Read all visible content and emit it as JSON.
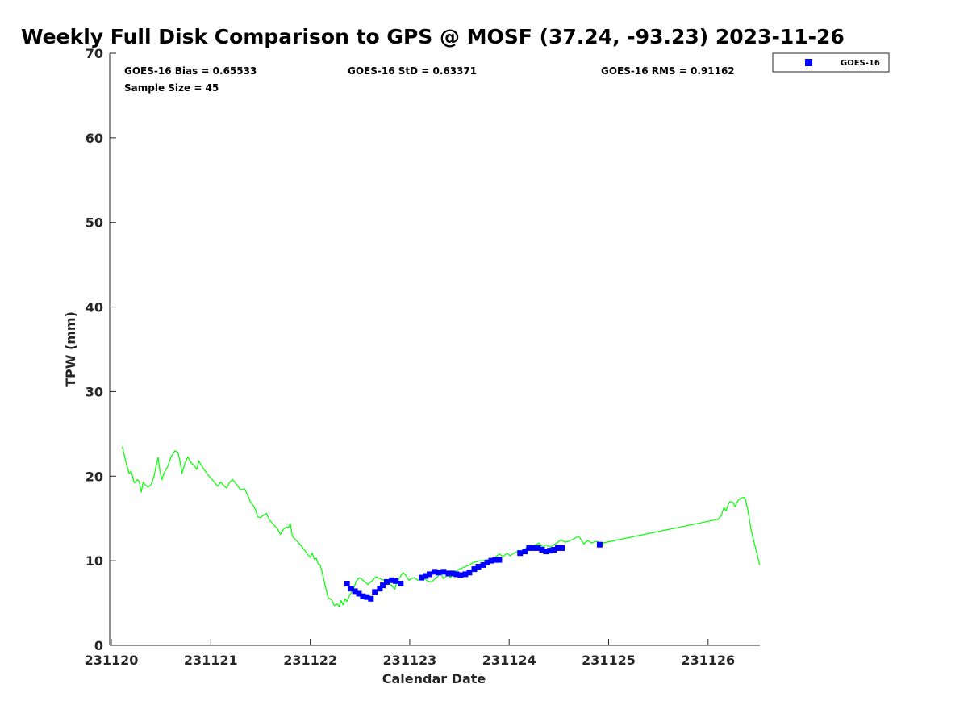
{
  "chart_data": {
    "type": "line",
    "title": "Weekly Full Disk Comparison to GPS @ MOSF (37.24, -93.23) 2023-11-26",
    "xlabel": "Calendar Date",
    "ylabel": "TPW (mm)",
    "xlim": [
      231120,
      231126.52
    ],
    "ylim": [
      0,
      70
    ],
    "x_ticks": [
      231120,
      231121,
      231122,
      231123,
      231124,
      231125,
      231126
    ],
    "x_tick_labels": [
      "231120",
      "231121",
      "231122",
      "231123",
      "231124",
      "231125",
      "231126"
    ],
    "y_ticks": [
      0,
      10,
      20,
      30,
      40,
      50,
      60,
      70
    ],
    "y_tick_labels": [
      "0",
      "10",
      "20",
      "30",
      "40",
      "50",
      "60",
      "70"
    ],
    "grid": false,
    "legend": {
      "position": "top-right",
      "entries": [
        "GOES-16"
      ]
    },
    "stats": {
      "bias": "GOES-16 Bias = 0.65533",
      "std": "GOES-16 StD = 0.63371",
      "rms": "GOES-16 RMS = 0.91162",
      "sample_size": "Sample Size = 45"
    },
    "series": [
      {
        "role": "gps",
        "kind": "line",
        "color": "#00ff00",
        "points": [
          [
            231120.11,
            23.5
          ],
          [
            231120.15,
            21.5
          ],
          [
            231120.18,
            20.3
          ],
          [
            231120.2,
            20.6
          ],
          [
            231120.23,
            19.2
          ],
          [
            231120.26,
            19.6
          ],
          [
            231120.28,
            19.4
          ],
          [
            231120.3,
            18.1
          ],
          [
            231120.32,
            19.3
          ],
          [
            231120.34,
            19.0
          ],
          [
            231120.37,
            18.7
          ],
          [
            231120.4,
            19.0
          ],
          [
            231120.43,
            20.0
          ],
          [
            231120.45,
            21.2
          ],
          [
            231120.47,
            22.2
          ],
          [
            231120.49,
            20.5
          ],
          [
            231120.51,
            19.6
          ],
          [
            231120.53,
            20.4
          ],
          [
            231120.57,
            21.2
          ],
          [
            231120.6,
            22.3
          ],
          [
            231120.64,
            23.0
          ],
          [
            231120.67,
            22.8
          ],
          [
            231120.69,
            21.8
          ],
          [
            231120.71,
            20.3
          ],
          [
            231120.74,
            21.5
          ],
          [
            231120.77,
            22.3
          ],
          [
            231120.8,
            21.6
          ],
          [
            231120.83,
            21.3
          ],
          [
            231120.86,
            20.8
          ],
          [
            231120.88,
            21.8
          ],
          [
            231120.92,
            21.0
          ],
          [
            231120.97,
            20.2
          ],
          [
            231121.02,
            19.5
          ],
          [
            231121.07,
            18.8
          ],
          [
            231121.1,
            19.3
          ],
          [
            231121.13,
            18.9
          ],
          [
            231121.16,
            18.6
          ],
          [
            231121.19,
            19.3
          ],
          [
            231121.22,
            19.6
          ],
          [
            231121.26,
            19.0
          ],
          [
            231121.3,
            18.4
          ],
          [
            231121.34,
            18.5
          ],
          [
            231121.37,
            17.8
          ],
          [
            231121.4,
            16.9
          ],
          [
            231121.43,
            16.5
          ],
          [
            231121.45,
            16.0
          ],
          [
            231121.47,
            15.2
          ],
          [
            231121.5,
            15.1
          ],
          [
            231121.53,
            15.4
          ],
          [
            231121.56,
            15.6
          ],
          [
            231121.59,
            14.8
          ],
          [
            231121.63,
            14.3
          ],
          [
            231121.67,
            13.8
          ],
          [
            231121.7,
            13.1
          ],
          [
            231121.73,
            13.7
          ],
          [
            231121.76,
            14.0
          ],
          [
            231121.78,
            13.9
          ],
          [
            231121.8,
            14.4
          ],
          [
            231121.82,
            12.9
          ],
          [
            231121.86,
            12.4
          ],
          [
            231121.9,
            11.9
          ],
          [
            231121.94,
            11.3
          ],
          [
            231121.97,
            10.8
          ],
          [
            231122.0,
            10.4
          ],
          [
            231122.02,
            10.9
          ],
          [
            231122.04,
            10.2
          ],
          [
            231122.06,
            10.3
          ],
          [
            231122.08,
            9.6
          ],
          [
            231122.1,
            9.5
          ],
          [
            231122.12,
            8.6
          ],
          [
            231122.14,
            7.6
          ],
          [
            231122.16,
            6.6
          ],
          [
            231122.18,
            5.6
          ],
          [
            231122.2,
            5.5
          ],
          [
            231122.22,
            5.3
          ],
          [
            231122.24,
            4.7
          ],
          [
            231122.27,
            4.9
          ],
          [
            231122.29,
            4.6
          ],
          [
            231122.31,
            5.3
          ],
          [
            231122.33,
            4.8
          ],
          [
            231122.35,
            5.5
          ],
          [
            231122.37,
            5.2
          ],
          [
            231122.4,
            6.0
          ],
          [
            231122.43,
            6.5
          ],
          [
            231122.46,
            7.5
          ],
          [
            231122.49,
            8.0
          ],
          [
            231122.52,
            7.8
          ],
          [
            231122.55,
            7.5
          ],
          [
            231122.58,
            7.2
          ],
          [
            231122.62,
            7.6
          ],
          [
            231122.66,
            8.1
          ],
          [
            231122.7,
            7.9
          ],
          [
            231122.74,
            7.7
          ],
          [
            231122.78,
            7.4
          ],
          [
            231122.82,
            7.1
          ],
          [
            231122.85,
            6.6
          ],
          [
            231122.87,
            7.5
          ],
          [
            231122.9,
            8.0
          ],
          [
            231122.93,
            8.6
          ],
          [
            231122.96,
            8.3
          ],
          [
            231122.99,
            7.7
          ],
          [
            231123.02,
            7.9
          ],
          [
            231123.05,
            8.0
          ],
          [
            231123.08,
            7.7
          ],
          [
            231123.11,
            7.8
          ],
          [
            231123.14,
            8.0
          ],
          [
            231123.18,
            7.6
          ],
          [
            231123.22,
            7.5
          ],
          [
            231123.25,
            7.8
          ],
          [
            231123.28,
            8.1
          ],
          [
            231123.31,
            8.6
          ],
          [
            231123.34,
            7.9
          ],
          [
            231123.38,
            8.3
          ],
          [
            231123.41,
            8.0
          ],
          [
            231123.44,
            8.5
          ],
          [
            231123.48,
            8.9
          ],
          [
            231123.52,
            9.1
          ],
          [
            231123.56,
            9.3
          ],
          [
            231123.6,
            9.5
          ],
          [
            231123.64,
            9.8
          ],
          [
            231123.68,
            9.9
          ],
          [
            231123.72,
            10.0
          ],
          [
            231123.76,
            10.0
          ],
          [
            231123.79,
            9.5
          ],
          [
            231123.82,
            10.1
          ],
          [
            231123.86,
            10.4
          ],
          [
            231123.9,
            10.8
          ],
          [
            231123.94,
            10.5
          ],
          [
            231123.98,
            10.9
          ],
          [
            231124.01,
            10.6
          ],
          [
            231124.05,
            10.9
          ],
          [
            231124.09,
            11.2
          ],
          [
            231124.12,
            11.0
          ],
          [
            231124.16,
            11.4
          ],
          [
            231124.2,
            11.8
          ],
          [
            231124.24,
            11.6
          ],
          [
            231124.27,
            11.9
          ],
          [
            231124.3,
            12.1
          ],
          [
            231124.34,
            11.6
          ],
          [
            231124.37,
            11.9
          ],
          [
            231124.41,
            11.6
          ],
          [
            231124.45,
            11.9
          ],
          [
            231124.49,
            12.2
          ],
          [
            231124.52,
            12.5
          ],
          [
            231124.56,
            12.2
          ],
          [
            231124.6,
            12.3
          ],
          [
            231124.65,
            12.6
          ],
          [
            231124.7,
            12.9
          ],
          [
            231124.75,
            12.0
          ],
          [
            231124.79,
            12.4
          ],
          [
            231124.83,
            12.1
          ],
          [
            231124.87,
            12.3
          ],
          [
            231124.9,
            12.2
          ],
          [
            231124.92,
            12.0
          ],
          [
            231124.94,
            12.1
          ],
          [
            231126.1,
            14.9
          ],
          [
            231126.13,
            15.3
          ],
          [
            231126.16,
            16.3
          ],
          [
            231126.18,
            15.9
          ],
          [
            231126.2,
            16.6
          ],
          [
            231126.22,
            17.0
          ],
          [
            231126.25,
            16.9
          ],
          [
            231126.27,
            16.4
          ],
          [
            231126.3,
            17.1
          ],
          [
            231126.33,
            17.4
          ],
          [
            231126.37,
            17.5
          ],
          [
            231126.4,
            16.0
          ],
          [
            231126.43,
            13.8
          ],
          [
            231126.46,
            12.3
          ],
          [
            231126.49,
            10.9
          ],
          [
            231126.52,
            9.5
          ]
        ]
      },
      {
        "name": "GOES-16",
        "kind": "markers",
        "color": "#0000ff",
        "points": [
          [
            231122.37,
            7.3
          ],
          [
            231122.41,
            6.7
          ],
          [
            231122.45,
            6.4
          ],
          [
            231122.49,
            6.1
          ],
          [
            231122.53,
            5.8
          ],
          [
            231122.57,
            5.7
          ],
          [
            231122.61,
            5.5
          ],
          [
            231122.65,
            6.3
          ],
          [
            231122.7,
            6.7
          ],
          [
            231122.73,
            7.1
          ],
          [
            231122.77,
            7.5
          ],
          [
            231122.82,
            7.7
          ],
          [
            231122.86,
            7.6
          ],
          [
            231122.91,
            7.3
          ],
          [
            231123.12,
            8.0
          ],
          [
            231123.16,
            8.2
          ],
          [
            231123.2,
            8.4
          ],
          [
            231123.25,
            8.7
          ],
          [
            231123.29,
            8.6
          ],
          [
            231123.34,
            8.7
          ],
          [
            231123.39,
            8.5
          ],
          [
            231123.43,
            8.5
          ],
          [
            231123.47,
            8.4
          ],
          [
            231123.51,
            8.3
          ],
          [
            231123.56,
            8.4
          ],
          [
            231123.6,
            8.6
          ],
          [
            231123.65,
            9.0
          ],
          [
            231123.69,
            9.3
          ],
          [
            231123.74,
            9.5
          ],
          [
            231123.78,
            9.8
          ],
          [
            231123.82,
            10.0
          ],
          [
            231123.86,
            10.1
          ],
          [
            231123.9,
            10.1
          ],
          [
            231124.11,
            10.9
          ],
          [
            231124.16,
            11.1
          ],
          [
            231124.2,
            11.5
          ],
          [
            231124.24,
            11.5
          ],
          [
            231124.29,
            11.5
          ],
          [
            231124.33,
            11.3
          ],
          [
            231124.37,
            11.1
          ],
          [
            231124.41,
            11.2
          ],
          [
            231124.45,
            11.3
          ],
          [
            231124.49,
            11.5
          ],
          [
            231124.53,
            11.5
          ],
          [
            231124.91,
            11.9
          ]
        ]
      }
    ]
  }
}
